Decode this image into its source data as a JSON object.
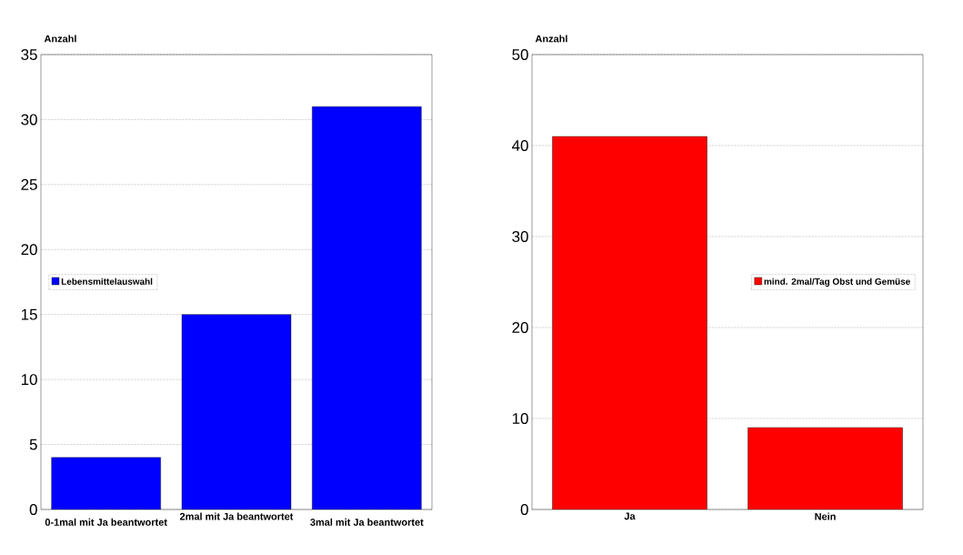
{
  "chart_data": [
    {
      "type": "bar",
      "ylabel": "Anzahl",
      "categories": [
        "0-1mal mit Ja beantwortet",
        "2mal mit Ja beantwortet",
        "3mal mit Ja beantwortet"
      ],
      "series": [
        {
          "name": "Lebensmittelauswahl",
          "color": "#0000ff",
          "values": [
            4,
            15,
            31
          ]
        }
      ],
      "ylim": [
        0,
        35
      ],
      "yticks": [
        0,
        5,
        10,
        15,
        20,
        25,
        30,
        35
      ],
      "grid": "y",
      "legend": "left"
    },
    {
      "type": "bar",
      "ylabel": "Anzahl",
      "categories": [
        "Ja",
        "Nein"
      ],
      "series": [
        {
          "name": "mind. 2mal/Tag Obst und Gemüse",
          "color": "#ff0000",
          "values": [
            41,
            9
          ]
        }
      ],
      "ylim": [
        0,
        50
      ],
      "yticks": [
        0,
        10,
        20,
        30,
        40,
        50
      ],
      "grid": "y",
      "legend": "right"
    }
  ]
}
